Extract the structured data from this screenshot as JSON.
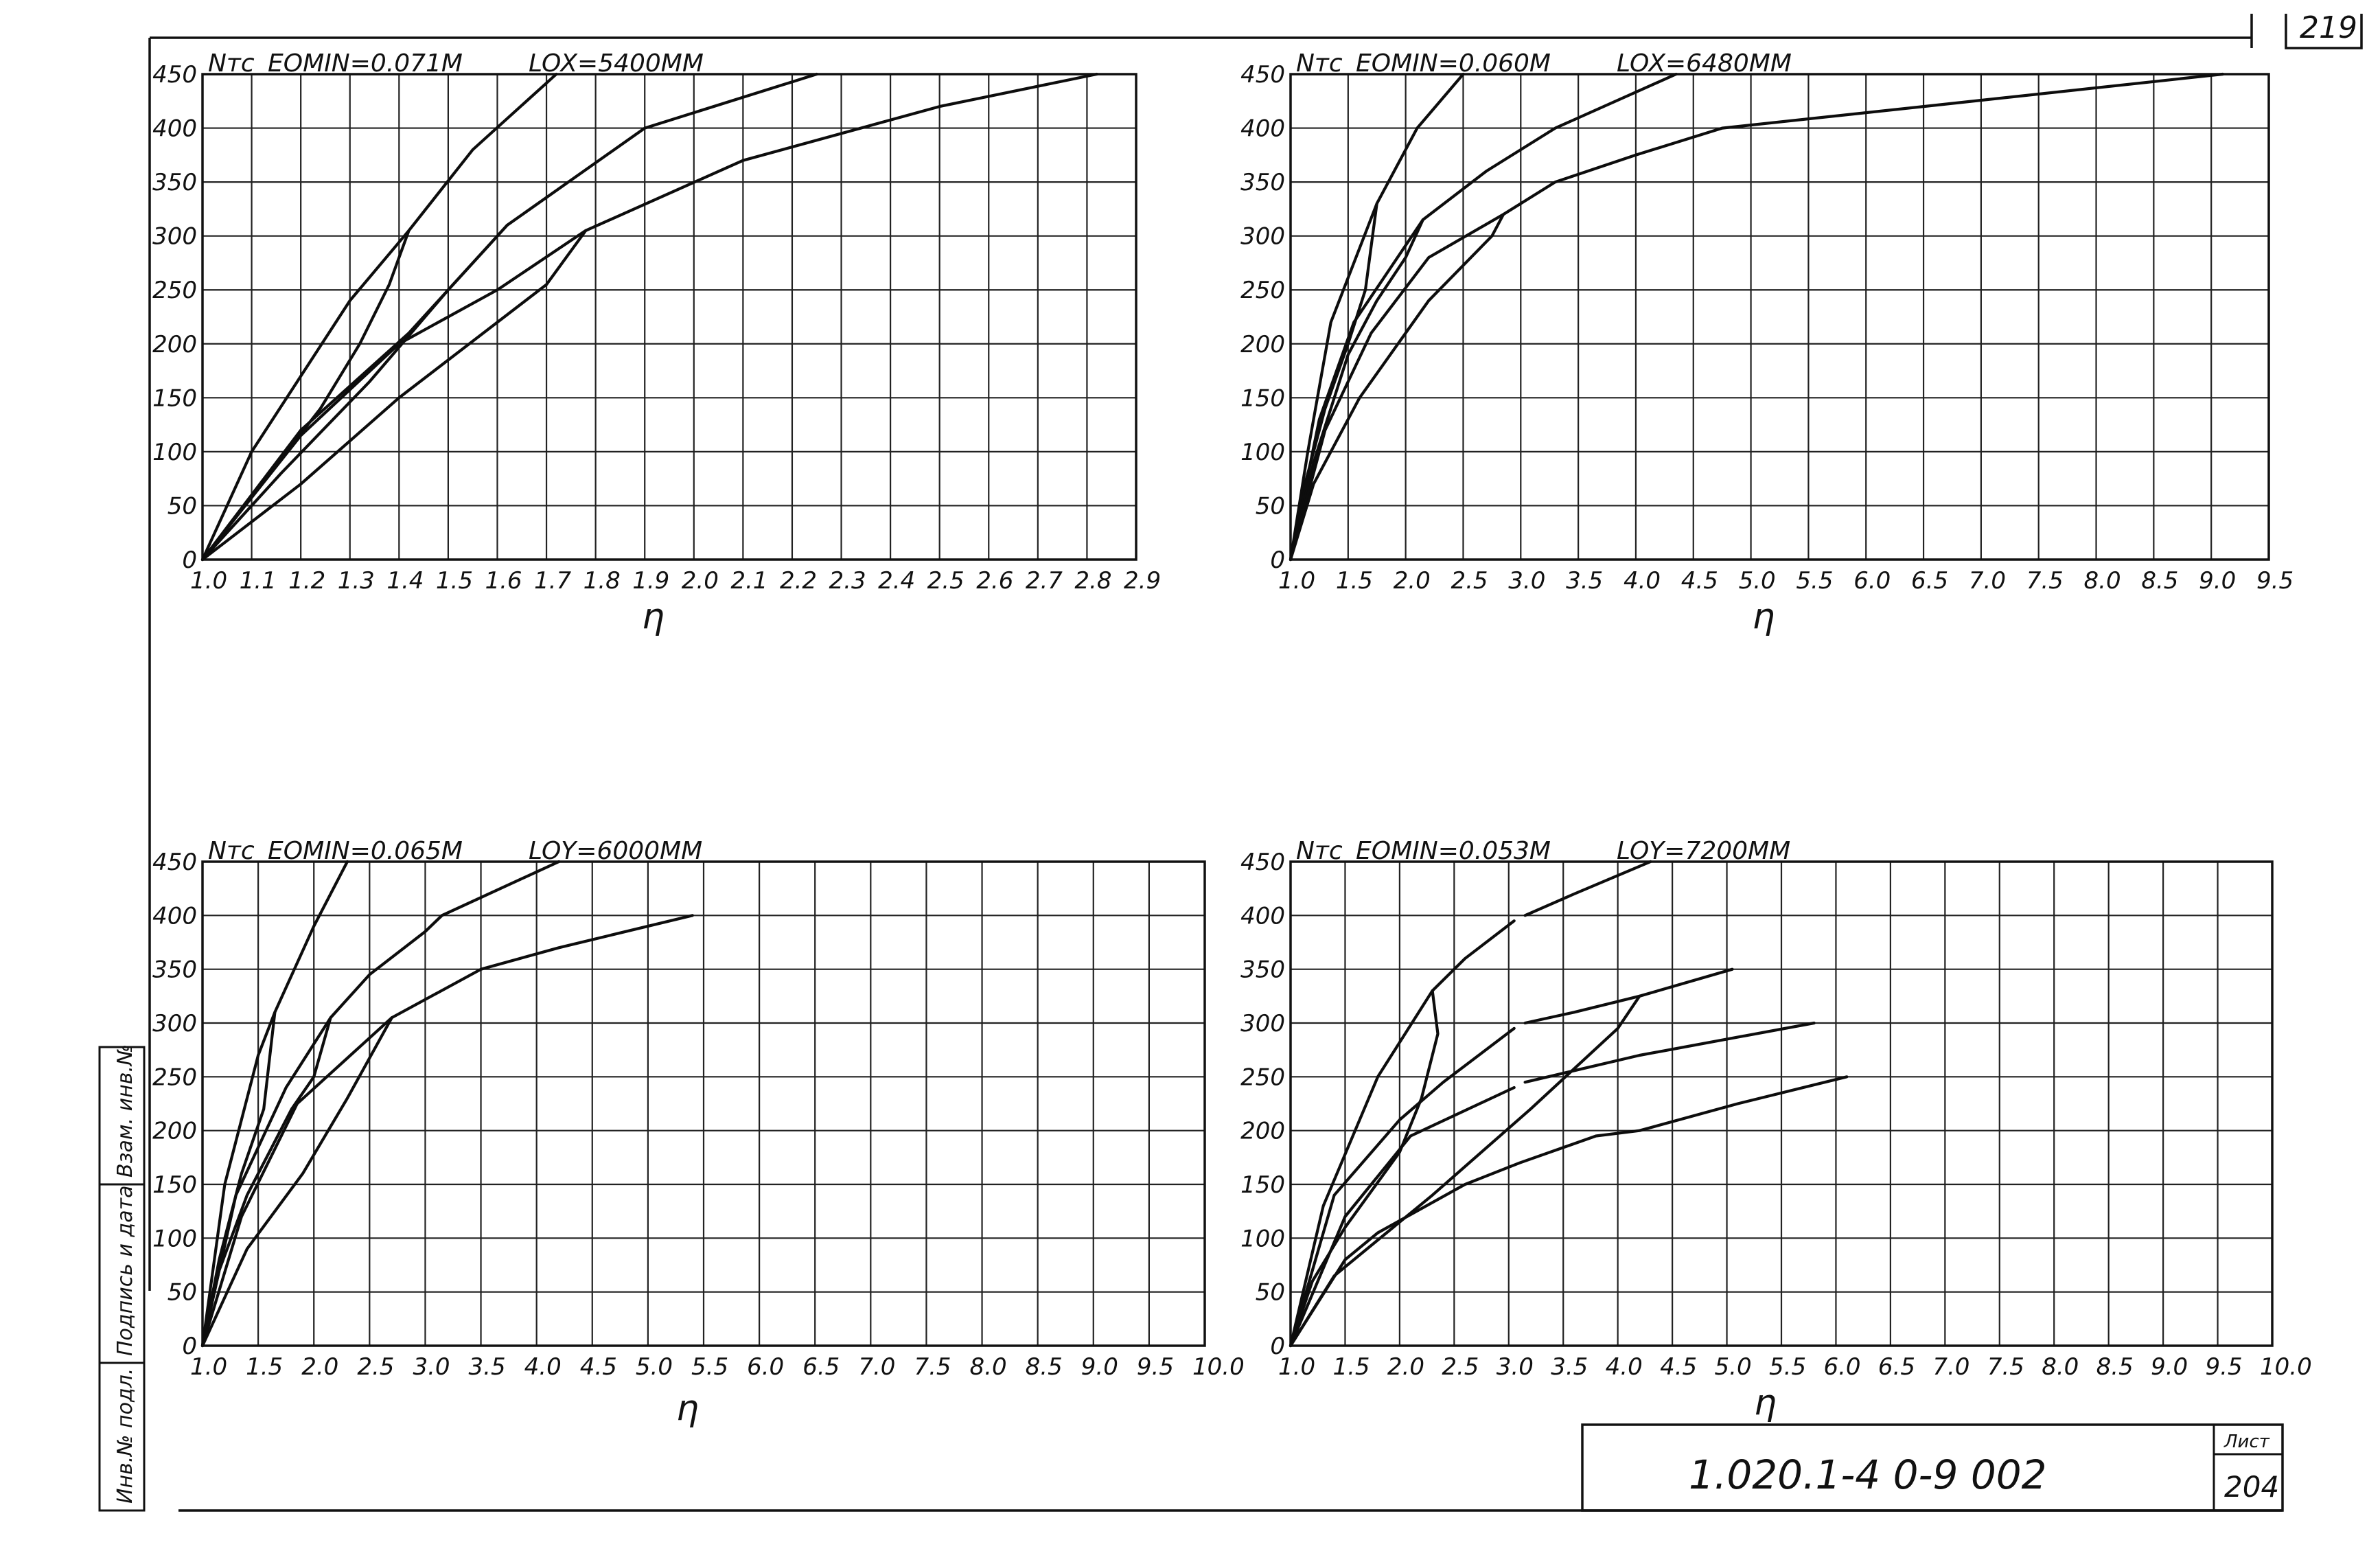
{
  "sheet": {
    "corner_page": "219",
    "doc_code": "1.020.1-4  0-9  002",
    "list_label": "Лист",
    "list_number": "204",
    "side_stamp": [
      "Инв.№ подл.",
      "Подпись и дата",
      "Взам. инв.№"
    ]
  },
  "chart_data": [
    {
      "type": "line",
      "header_left": "Nтс",
      "header_eo": "EOMIN=0.071М",
      "header_lo": "LOX=5400ММ",
      "xlabel": "η",
      "ylabel": "",
      "xlim": [
        1.0,
        2.9
      ],
      "ylim": [
        0,
        450
      ],
      "x_ticks": [
        "1.0",
        "1.1",
        "1.2",
        "1.3",
        "1.4",
        "1.5",
        "1.6",
        "1.7",
        "1.8",
        "1.9",
        "2.0",
        "2.1",
        "2.2",
        "2.3",
        "2.4",
        "2.5",
        "2.6",
        "2.7",
        "2.8",
        "2.9"
      ],
      "y_ticks": [
        "0",
        "50",
        "100",
        "150",
        "200",
        "250",
        "300",
        "350",
        "400",
        "450"
      ],
      "grid": true,
      "series": [
        {
          "points": [
            [
              1.0,
              0
            ],
            [
              1.1,
              100
            ],
            [
              1.3,
              240
            ],
            [
              1.42,
              305
            ],
            [
              1.55,
              380
            ],
            [
              1.72,
              450
            ]
          ]
        },
        {
          "points": [
            [
              1.42,
              305
            ],
            [
              1.38,
              255
            ],
            [
              1.32,
              200
            ],
            [
              1.24,
              140
            ],
            [
              1.12,
              70
            ],
            [
              1.0,
              0
            ]
          ]
        },
        {
          "points": [
            [
              1.0,
              0
            ],
            [
              1.2,
              120
            ],
            [
              1.42,
              210
            ],
            [
              1.62,
              310
            ],
            [
              1.9,
              400
            ],
            [
              2.25,
              450
            ]
          ]
        },
        {
          "points": [
            [
              1.62,
              310
            ],
            [
              1.58,
              290
            ],
            [
              1.5,
              250
            ],
            [
              1.34,
              165
            ],
            [
              1.16,
              80
            ],
            [
              1.0,
              0
            ]
          ]
        },
        {
          "points": [
            [
              1.0,
              0
            ],
            [
              1.2,
              115
            ],
            [
              1.4,
              200
            ],
            [
              1.6,
              250
            ],
            [
              1.78,
              305
            ],
            [
              2.1,
              370
            ],
            [
              2.5,
              420
            ],
            [
              2.82,
              450
            ]
          ]
        },
        {
          "points": [
            [
              1.78,
              305
            ],
            [
              1.7,
              255
            ],
            [
              1.4,
              150
            ],
            [
              1.2,
              70
            ],
            [
              1.0,
              0
            ]
          ]
        }
      ]
    },
    {
      "type": "line",
      "header_left": "Nтс",
      "header_eo": "EOMIN=0.060М",
      "header_lo": "LOX=6480ММ",
      "xlabel": "η",
      "ylabel": "",
      "xlim": [
        1.0,
        9.5
      ],
      "ylim": [
        0,
        450
      ],
      "x_ticks": [
        "1.0",
        "1.5",
        "2.0",
        "2.5",
        "3.0",
        "3.5",
        "4.0",
        "4.5",
        "5.0",
        "5.5",
        "6.0",
        "6.5",
        "7.0",
        "7.5",
        "8.0",
        "8.5",
        "9.0",
        "9.5"
      ],
      "y_ticks": [
        "0",
        "50",
        "100",
        "150",
        "200",
        "250",
        "300",
        "350",
        "400",
        "450"
      ],
      "grid": true,
      "series": [
        {
          "points": [
            [
              1.0,
              0
            ],
            [
              1.15,
              100
            ],
            [
              1.35,
              220
            ],
            [
              1.75,
              330
            ],
            [
              2.1,
              400
            ],
            [
              2.5,
              450
            ]
          ]
        },
        {
          "points": [
            [
              1.75,
              330
            ],
            [
              1.65,
              250
            ],
            [
              1.5,
              200
            ],
            [
              1.3,
              140
            ],
            [
              1.1,
              60
            ],
            [
              1.0,
              0
            ]
          ]
        },
        {
          "points": [
            [
              1.0,
              0
            ],
            [
              1.25,
              130
            ],
            [
              1.55,
              220
            ],
            [
              2.15,
              315
            ],
            [
              2.7,
              360
            ],
            [
              3.3,
              400
            ],
            [
              4.35,
              450
            ]
          ]
        },
        {
          "points": [
            [
              2.15,
              315
            ],
            [
              2.0,
              280
            ],
            [
              1.75,
              240
            ],
            [
              1.5,
              190
            ],
            [
              1.2,
              90
            ],
            [
              1.0,
              0
            ]
          ]
        },
        {
          "points": [
            [
              1.0,
              0
            ],
            [
              1.3,
              120
            ],
            [
              1.7,
              210
            ],
            [
              2.2,
              280
            ],
            [
              2.85,
              320
            ],
            [
              3.3,
              350
            ],
            [
              4.0,
              375
            ],
            [
              4.75,
              400
            ],
            [
              6.5,
              420
            ],
            [
              9.1,
              450
            ]
          ]
        },
        {
          "points": [
            [
              2.85,
              320
            ],
            [
              2.75,
              300
            ],
            [
              2.2,
              240
            ],
            [
              1.6,
              150
            ],
            [
              1.2,
              70
            ],
            [
              1.0,
              0
            ]
          ]
        }
      ]
    },
    {
      "type": "line",
      "header_left": "Nтс",
      "header_eo": "EOMIN=0.065М",
      "header_lo": "LOY=6000ММ",
      "xlabel": "η",
      "ylabel": "",
      "xlim": [
        1.0,
        10.0
      ],
      "ylim": [
        0,
        450
      ],
      "x_ticks": [
        "1.0",
        "1.5",
        "2.0",
        "2.5",
        "3.0",
        "3.5",
        "4.0",
        "4.5",
        "5.0",
        "5.5",
        "6.0",
        "6.5",
        "7.0",
        "7.5",
        "8.0",
        "8.5",
        "9.0",
        "9.5",
        "10.0"
      ],
      "y_ticks": [
        "0",
        "50",
        "100",
        "150",
        "200",
        "250",
        "300",
        "350",
        "400",
        "450"
      ],
      "grid": true,
      "series": [
        {
          "points": [
            [
              1.0,
              0
            ],
            [
              1.2,
              150
            ],
            [
              1.5,
              270
            ],
            [
              1.65,
              310
            ],
            [
              2.0,
              390
            ],
            [
              2.3,
              450
            ]
          ]
        },
        {
          "points": [
            [
              1.65,
              310
            ],
            [
              1.55,
              220
            ],
            [
              1.35,
              160
            ],
            [
              1.15,
              80
            ],
            [
              1.0,
              0
            ]
          ]
        },
        {
          "points": [
            [
              1.0,
              0
            ],
            [
              1.3,
              140
            ],
            [
              1.75,
              240
            ],
            [
              2.15,
              305
            ],
            [
              2.5,
              345
            ],
            [
              3.0,
              385
            ],
            [
              3.15,
              400
            ],
            [
              4.2,
              450
            ]
          ]
        },
        {
          "points": [
            [
              2.15,
              305
            ],
            [
              2.0,
              250
            ],
            [
              1.8,
              220
            ],
            [
              1.4,
              140
            ],
            [
              1.15,
              70
            ],
            [
              1.0,
              0
            ]
          ]
        },
        {
          "points": [
            [
              1.0,
              0
            ],
            [
              1.35,
              120
            ],
            [
              1.85,
              225
            ],
            [
              2.7,
              305
            ],
            [
              3.5,
              350
            ],
            [
              4.2,
              370
            ],
            [
              5.4,
              400
            ]
          ]
        },
        {
          "points": [
            [
              2.7,
              305
            ],
            [
              2.3,
              230
            ],
            [
              1.9,
              160
            ],
            [
              1.4,
              90
            ],
            [
              1.0,
              0
            ]
          ]
        }
      ]
    },
    {
      "type": "line",
      "header_left": "Nтс",
      "header_eo": "EOMIN=0.053М",
      "header_lo": "LOY=7200ММ",
      "xlabel": "η",
      "ylabel": "",
      "xlim": [
        1.0,
        10.0
      ],
      "ylim": [
        0,
        450
      ],
      "x_ticks": [
        "1.0",
        "1.5",
        "2.0",
        "2.5",
        "3.0",
        "3.5",
        "4.0",
        "4.5",
        "5.0",
        "5.5",
        "6.0",
        "6.5",
        "7.0",
        "7.5",
        "8.0",
        "8.5",
        "9.0",
        "9.5",
        "10.0"
      ],
      "y_ticks": [
        "0",
        "50",
        "100",
        "150",
        "200",
        "250",
        "300",
        "350",
        "400",
        "450"
      ],
      "grid": true,
      "series": [
        {
          "points": [
            [
              1.0,
              0
            ],
            [
              1.3,
              130
            ],
            [
              1.8,
              250
            ],
            [
              2.3,
              330
            ],
            [
              2.6,
              360
            ],
            [
              3.05,
              395
            ]
          ]
        },
        {
          "points": [
            [
              3.15,
              400
            ],
            [
              3.6,
              420
            ],
            [
              4.3,
              450
            ]
          ]
        },
        {
          "points": [
            [
              2.3,
              330
            ],
            [
              2.35,
              290
            ],
            [
              2.2,
              230
            ],
            [
              2.0,
              180
            ],
            [
              1.5,
              110
            ],
            [
              1.2,
              60
            ],
            [
              1.0,
              0
            ]
          ]
        },
        {
          "points": [
            [
              1.0,
              0
            ],
            [
              1.4,
              140
            ],
            [
              2.0,
              210
            ],
            [
              2.4,
              245
            ],
            [
              3.05,
              295
            ]
          ]
        },
        {
          "points": [
            [
              3.15,
              300
            ],
            [
              3.6,
              310
            ],
            [
              4.2,
              325
            ],
            [
              5.05,
              350
            ]
          ]
        },
        {
          "points": [
            [
              4.2,
              325
            ],
            [
              4.0,
              295
            ],
            [
              3.2,
              220
            ],
            [
              2.3,
              140
            ],
            [
              1.4,
              65
            ],
            [
              1.0,
              0
            ]
          ]
        },
        {
          "points": [
            [
              1.0,
              0
            ],
            [
              1.5,
              120
            ],
            [
              2.1,
              195
            ],
            [
              3.05,
              240
            ]
          ]
        },
        {
          "points": [
            [
              3.15,
              245
            ],
            [
              4.2,
              270
            ],
            [
              5.8,
              300
            ]
          ]
        },
        {
          "points": [
            [
              1.0,
              0
            ],
            [
              1.5,
              80
            ],
            [
              1.8,
              105
            ],
            [
              2.6,
              150
            ],
            [
              3.1,
              170
            ],
            [
              3.8,
              195
            ],
            [
              4.2,
              200
            ],
            [
              5.1,
              225
            ],
            [
              6.1,
              250
            ]
          ]
        }
      ]
    }
  ]
}
